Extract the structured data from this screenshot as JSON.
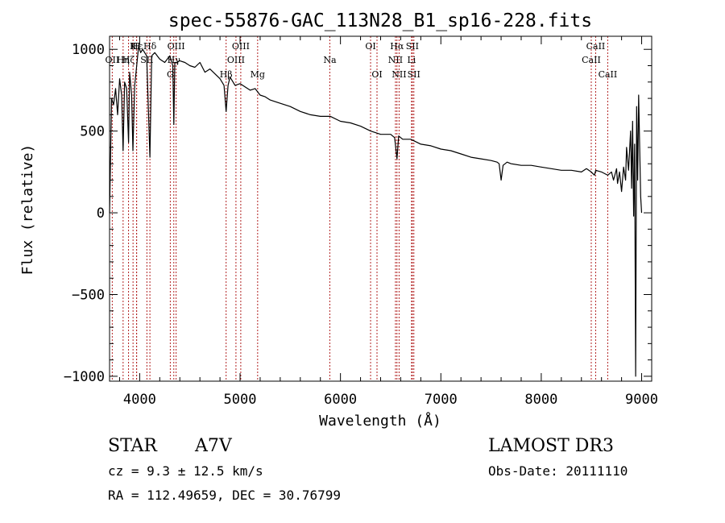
{
  "chart_data": {
    "type": "line",
    "title": "spec-55876-GAC_113N28_B1_sp16-228.fits",
    "xlabel": "Wavelength (Å)",
    "ylabel": "Flux (relative)",
    "xlim": [
      3700,
      9100
    ],
    "ylim": [
      -1030,
      1080
    ],
    "xticks": [
      {
        "value": 4000,
        "label": "4000"
      },
      {
        "value": 5000,
        "label": "5000"
      },
      {
        "value": 6000,
        "label": "6000"
      },
      {
        "value": 7000,
        "label": "7000"
      },
      {
        "value": 8000,
        "label": "8000"
      },
      {
        "value": 9000,
        "label": "9000"
      }
    ],
    "yticks": [
      {
        "value": 1000,
        "label": "1000"
      },
      {
        "value": 500,
        "label": "500"
      },
      {
        "value": 0,
        "label": "0"
      },
      {
        "value": -500,
        "label": "−500"
      },
      {
        "value": -1000,
        "label": "−1000"
      }
    ],
    "series": [
      {
        "name": "flux",
        "x": [
          3700,
          3720,
          3740,
          3760,
          3780,
          3800,
          3820,
          3835,
          3850,
          3870,
          3889,
          3900,
          3920,
          3933,
          3950,
          3970,
          3990,
          4010,
          4030,
          4050,
          4070,
          4102,
          4120,
          4150,
          4200,
          4250,
          4300,
          4330,
          4340,
          4350,
          4370,
          4400,
          4450,
          4500,
          4550,
          4600,
          4650,
          4700,
          4750,
          4800,
          4840,
          4861,
          4880,
          4900,
          4950,
          5000,
          5050,
          5100,
          5150,
          5200,
          5250,
          5300,
          5400,
          5500,
          5600,
          5700,
          5800,
          5900,
          6000,
          6100,
          6200,
          6300,
          6400,
          6500,
          6540,
          6563,
          6580,
          6620,
          6700,
          6800,
          6900,
          7000,
          7100,
          7200,
          7300,
          7400,
          7500,
          7560,
          7580,
          7600,
          7620,
          7640,
          7660,
          7700,
          7800,
          7900,
          8000,
          8100,
          8200,
          8300,
          8400,
          8450,
          8498,
          8530,
          8542,
          8600,
          8662,
          8700,
          8720,
          8750,
          8760,
          8780,
          8800,
          8820,
          8840,
          8850,
          8870,
          8890,
          8900,
          8910,
          8920,
          8930,
          8940,
          8945,
          8950,
          8960,
          8970,
          8990,
          9000
        ],
        "values": [
          0,
          700,
          660,
          760,
          600,
          820,
          720,
          380,
          800,
          760,
          430,
          860,
          720,
          380,
          780,
          900,
          1020,
          980,
          1000,
          980,
          960,
          340,
          960,
          980,
          940,
          920,
          960,
          900,
          540,
          920,
          920,
          930,
          920,
          900,
          890,
          920,
          860,
          880,
          850,
          820,
          780,
          620,
          780,
          830,
          780,
          790,
          770,
          750,
          760,
          720,
          710,
          690,
          670,
          650,
          620,
          600,
          590,
          590,
          560,
          550,
          530,
          500,
          480,
          480,
          460,
          330,
          470,
          450,
          450,
          420,
          410,
          390,
          380,
          360,
          340,
          330,
          320,
          310,
          300,
          200,
          290,
          300,
          310,
          300,
          290,
          290,
          280,
          270,
          260,
          260,
          250,
          270,
          250,
          230,
          260,
          250,
          230,
          250,
          200,
          270,
          180,
          250,
          130,
          280,
          200,
          400,
          260,
          500,
          150,
          560,
          -20,
          420,
          -1000,
          -150,
          650,
          200,
          720,
          100,
          0
        ]
      }
    ],
    "line_markers": [
      {
        "label": "Hε",
        "wavelength": 3970,
        "row": 1
      },
      {
        "label": "K",
        "wavelength": 3934,
        "row": 1
      },
      {
        "label": "H",
        "wavelength": 3969,
        "row": 1
      },
      {
        "label": "Hδ",
        "wavelength": 4102,
        "row": 1
      },
      {
        "label": "OII",
        "wavelength": 3727,
        "row": 2
      },
      {
        "label": "Hη",
        "wavelength": 3835,
        "row": 2
      },
      {
        "label": "Hζ",
        "wavelength": 3889,
        "row": 2
      },
      {
        "label": "SII",
        "wavelength": 4072,
        "row": 2
      },
      {
        "label": "OIII",
        "wavelength": 4363,
        "row": 1
      },
      {
        "label": "Hγ",
        "wavelength": 4340,
        "row": 2
      },
      {
        "label": "G",
        "wavelength": 4305,
        "row": 3
      },
      {
        "label": "OIII",
        "wavelength": 5007,
        "row": 1
      },
      {
        "label": "OIII",
        "wavelength": 4959,
        "row": 2
      },
      {
        "label": "Hβ",
        "wavelength": 4861,
        "row": 3
      },
      {
        "label": "Mg",
        "wavelength": 5175,
        "row": 3
      },
      {
        "label": "Na",
        "wavelength": 5894,
        "row": 2
      },
      {
        "label": "OI",
        "wavelength": 6300,
        "row": 1
      },
      {
        "label": "OI",
        "wavelength": 6364,
        "row": 3
      },
      {
        "label": "Hα",
        "wavelength": 6563,
        "row": 1
      },
      {
        "label": "SII",
        "wavelength": 6716,
        "row": 1
      },
      {
        "label": "NII",
        "wavelength": 6548,
        "row": 2
      },
      {
        "label": "Li",
        "wavelength": 6708,
        "row": 2
      },
      {
        "label": "NII",
        "wavelength": 6584,
        "row": 3
      },
      {
        "label": "SII",
        "wavelength": 6731,
        "row": 3
      },
      {
        "label": "CaII",
        "wavelength": 8542,
        "row": 1
      },
      {
        "label": "CaII",
        "wavelength": 8498,
        "row": 2
      },
      {
        "label": "CaII",
        "wavelength": 8662,
        "row": 3
      }
    ],
    "grid": false,
    "legend": "none",
    "line_color": "#000000",
    "marker_color": "#b22222"
  },
  "info": {
    "object_class": "STAR",
    "subclass": "A7V",
    "survey": "LAMOST DR3",
    "redshift_text": "cz = 9.3 ± 12.5 km/s",
    "obs_date": "Obs-Date: 20111110",
    "coords": "RA = 112.49659, DEC =  30.76799"
  }
}
